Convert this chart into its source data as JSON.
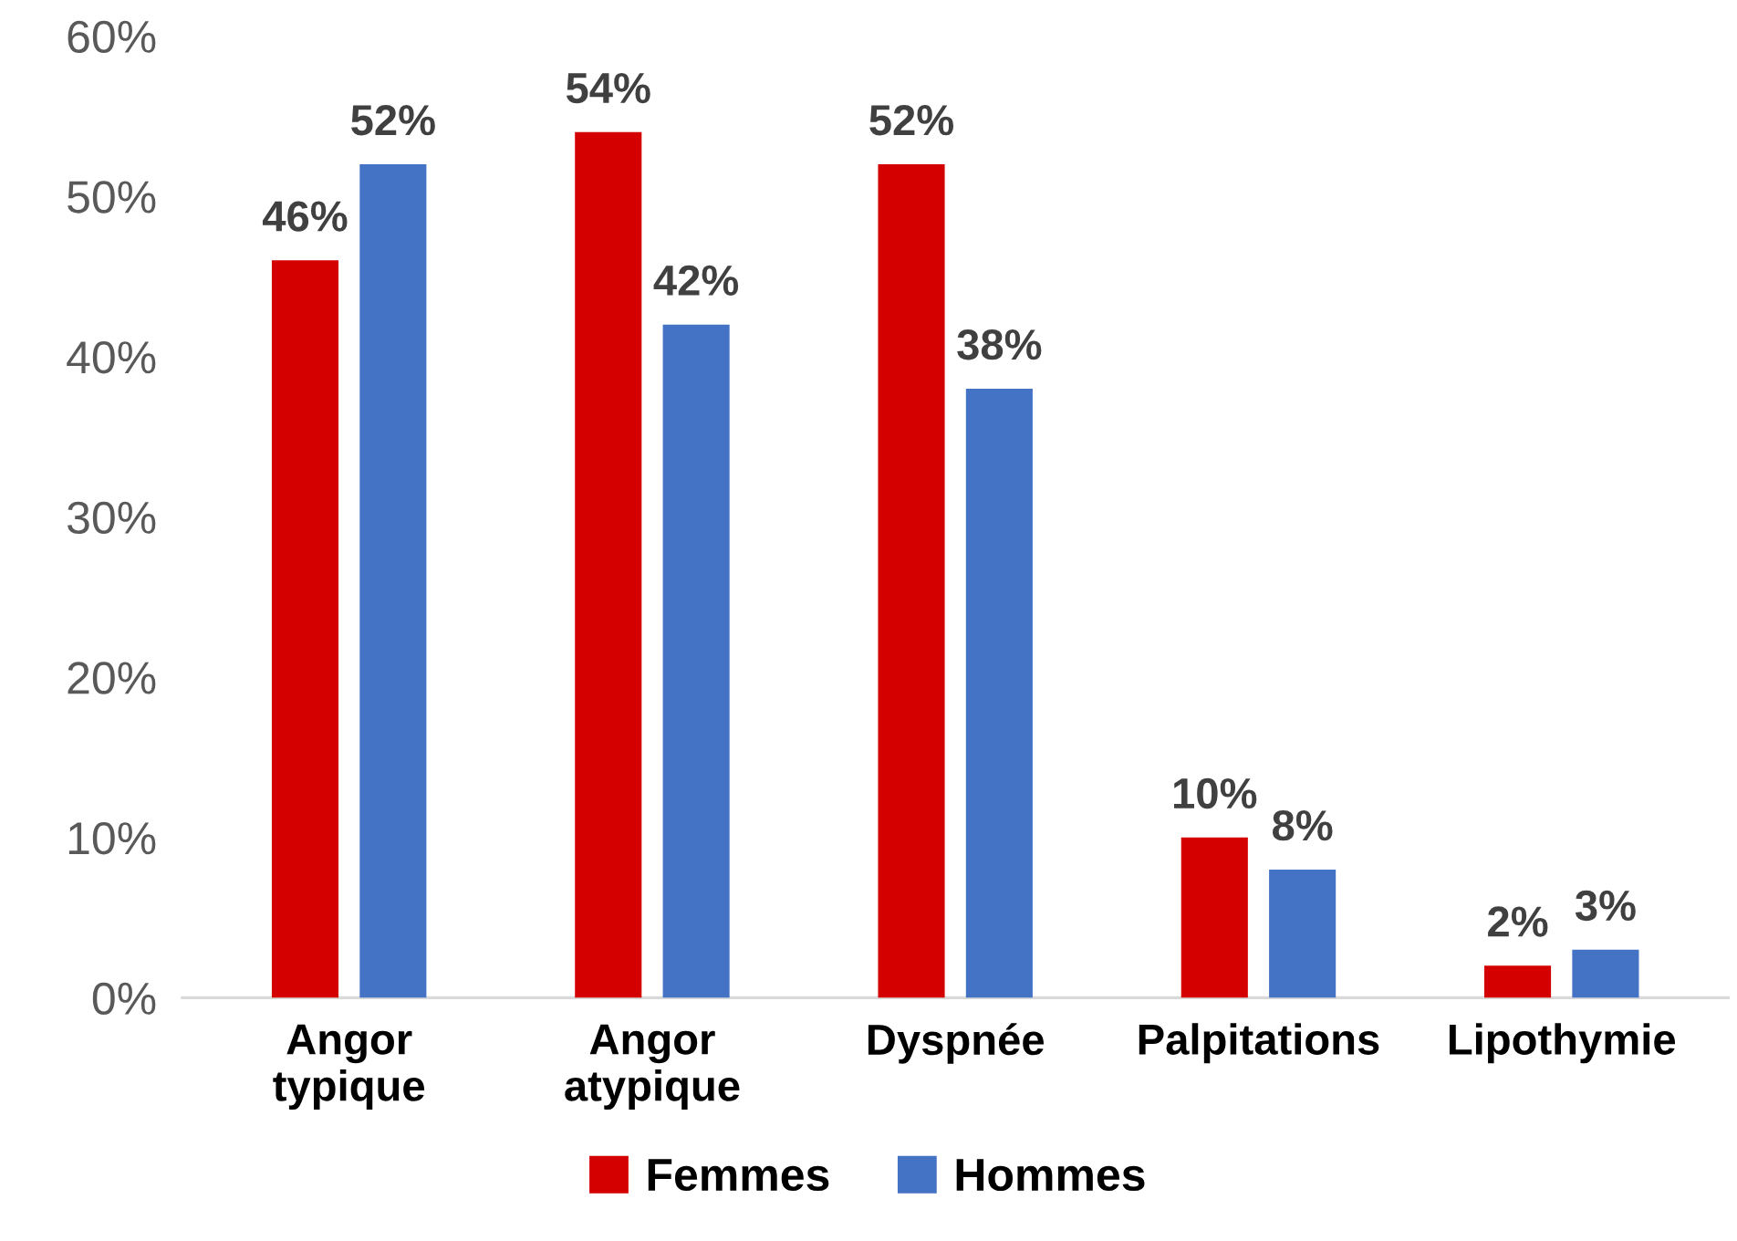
{
  "chart_data": {
    "type": "bar",
    "categories": [
      "Angor\ntypique",
      "Angor\natypique",
      "Dyspnée",
      "Palpitations",
      "Lipothymie"
    ],
    "series": [
      {
        "name": "Femmes",
        "color": "#d40000",
        "values": [
          46,
          54,
          52,
          10,
          2
        ],
        "value_labels": [
          "46%",
          "54%",
          "52%",
          "10%",
          "2%"
        ]
      },
      {
        "name": "Hommes",
        "color": "#4472c4",
        "values": [
          52,
          42,
          38,
          8,
          3
        ],
        "value_labels": [
          "52%",
          "42%",
          "38%",
          "8%",
          "3%"
        ]
      }
    ],
    "ylim": [
      0,
      60
    ],
    "yticks": [
      {
        "value": 0,
        "label": "0%"
      },
      {
        "value": 10,
        "label": "10%"
      },
      {
        "value": 20,
        "label": "20%"
      },
      {
        "value": 30,
        "label": "30%"
      },
      {
        "value": 40,
        "label": "40%"
      },
      {
        "value": 50,
        "label": "50%"
      },
      {
        "value": 60,
        "label": "60%"
      }
    ],
    "grid": false,
    "legend": "bottom"
  }
}
